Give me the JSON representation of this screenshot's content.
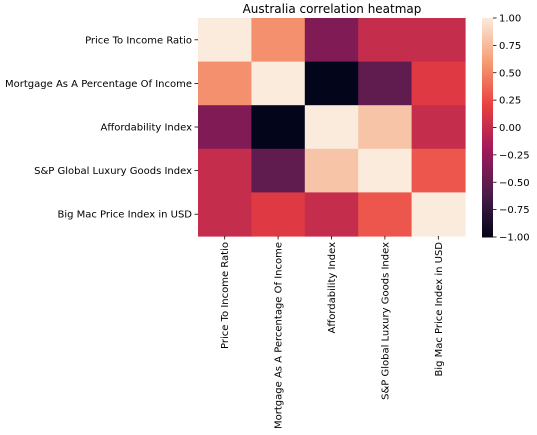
{
  "chart_data": {
    "type": "heatmap",
    "title": "Australia correlation heatmap",
    "row_labels": [
      "Price To Income Ratio",
      "Mortgage As A Percentage Of Income",
      "Affordability Index",
      "S&P Global Luxury Goods Index",
      "Big Mac Price Index in USD"
    ],
    "col_labels": [
      "Price To Income Ratio",
      "Mortgage As A Percentage Of Income",
      "Affordability Index",
      "S&P Global Luxury Goods Index",
      "Big Mac Price Index in USD"
    ],
    "values": [
      [
        1.0,
        0.55,
        -0.35,
        0.0,
        0.0
      ],
      [
        0.55,
        1.0,
        -1.0,
        -0.5,
        0.15
      ],
      [
        -0.35,
        -1.0,
        1.0,
        0.8,
        0.0
      ],
      [
        0.0,
        -0.5,
        0.8,
        1.0,
        0.3
      ],
      [
        0.0,
        0.15,
        0.0,
        0.3,
        1.0
      ]
    ],
    "colorbar": {
      "range": [
        -1.0,
        1.0
      ],
      "ticks": [
        "1.00",
        "0.75",
        "0.50",
        "0.25",
        "0.00",
        "−0.25",
        "−0.50",
        "−0.75",
        "−1.00"
      ],
      "colormap": [
        "#03051a",
        "#4c1d4b",
        "#a11a5b",
        "#e83f3f",
        "#f69c73",
        "#faebdd"
      ]
    }
  }
}
